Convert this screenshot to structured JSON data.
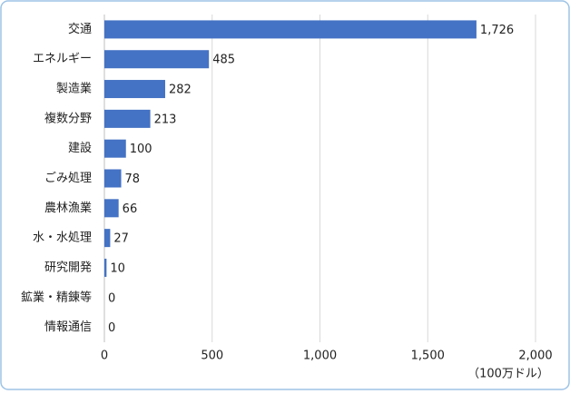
{
  "chart_data": {
    "type": "hbar",
    "categories": [
      "交通",
      "エネルギー",
      "製造業",
      "複数分野",
      "建設",
      "ごみ処理",
      "農林漁業",
      "水・水処理",
      "研究開発",
      "鉱業・精錬等",
      "情報通信"
    ],
    "values": [
      1726,
      485,
      282,
      213,
      100,
      78,
      66,
      27,
      10,
      0,
      0
    ],
    "value_labels": [
      "1,726",
      "485",
      "282",
      "213",
      "100",
      "78",
      "66",
      "27",
      "10",
      "0",
      "0"
    ],
    "color": "#4472c4",
    "xlim": [
      0,
      2000
    ],
    "xticks": [
      0,
      500,
      {
        "value": 1000,
        "label": "1,000"
      },
      {
        "value": 1500,
        "label": "1,500"
      },
      {
        "value": 2000,
        "label": "2,000"
      }
    ],
    "x_label": "（100万ドル）",
    "grid": true
  }
}
